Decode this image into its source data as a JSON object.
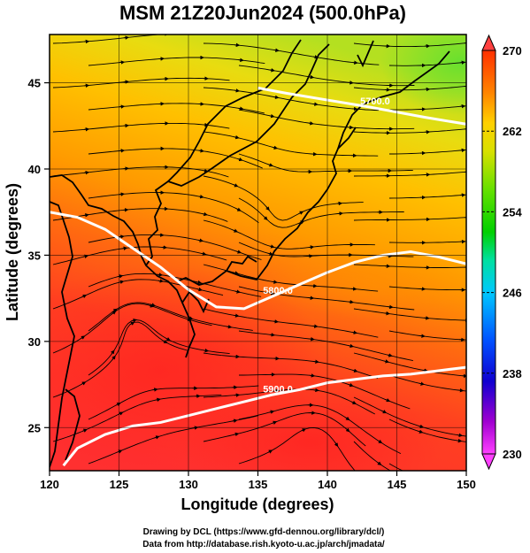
{
  "title": "MSM 21Z20Jun2024 (500.0hPa)",
  "xlabel": "Longitude (degrees)",
  "ylabel": "Latitude  (degrees)",
  "credit_line1": "Drawing by DCL (https://www.gfd-dennou.org/library/dcl/)",
  "credit_line2": "Data from http://database.rish.kyoto-u.ac.jp/arch/jmadata/",
  "chart_data": {
    "type": "heatmap",
    "x_range": [
      120,
      150
    ],
    "y_range": [
      22.5,
      47.8
    ],
    "x_ticks": [
      120,
      125,
      130,
      135,
      140,
      145,
      150
    ],
    "y_ticks": [
      25,
      30,
      35,
      40,
      45
    ],
    "grid": true,
    "colorbar": {
      "range": [
        230,
        270
      ],
      "ticks": [
        230,
        238,
        246,
        254,
        262,
        270
      ],
      "colors": [
        "#ff40ff",
        "#8000c0",
        "#0000e0",
        "#0060ff",
        "#00c8ff",
        "#00e0a0",
        "#00d000",
        "#40e000",
        "#c8e000",
        "#ffd000",
        "#ff8000",
        "#ff3000"
      ]
    },
    "contours": [
      {
        "label": "5700.0",
        "points": [
          [
            135,
            44.7
          ],
          [
            137,
            44.4
          ],
          [
            140,
            44.0
          ],
          [
            143,
            43.6
          ],
          [
            147,
            43.0
          ],
          [
            150,
            42.6
          ]
        ]
      },
      {
        "label": "5800.0",
        "points": [
          [
            120,
            37.5
          ],
          [
            122,
            37.2
          ],
          [
            124,
            36.5
          ],
          [
            126,
            35.4
          ],
          [
            128,
            34.3
          ],
          [
            130,
            33.0
          ],
          [
            132,
            32.0
          ],
          [
            134,
            31.9
          ],
          [
            136,
            32.6
          ],
          [
            138,
            33.3
          ],
          [
            140,
            34.0
          ],
          [
            142,
            34.6
          ],
          [
            144,
            35.0
          ],
          [
            146,
            35.2
          ],
          [
            148,
            34.9
          ],
          [
            150,
            34.5
          ]
        ]
      },
      {
        "label": "5900.0",
        "points": [
          [
            121,
            22.8
          ],
          [
            122,
            23.8
          ],
          [
            124,
            24.6
          ],
          [
            126,
            25.1
          ],
          [
            128,
            25.3
          ],
          [
            130,
            25.7
          ],
          [
            132,
            26.1
          ],
          [
            134,
            26.5
          ],
          [
            136,
            26.9
          ],
          [
            138,
            27.2
          ],
          [
            140,
            27.6
          ],
          [
            142,
            27.8
          ],
          [
            144,
            28.0
          ],
          [
            146,
            28.1
          ],
          [
            148,
            28.3
          ],
          [
            150,
            28.5
          ]
        ]
      }
    ]
  }
}
